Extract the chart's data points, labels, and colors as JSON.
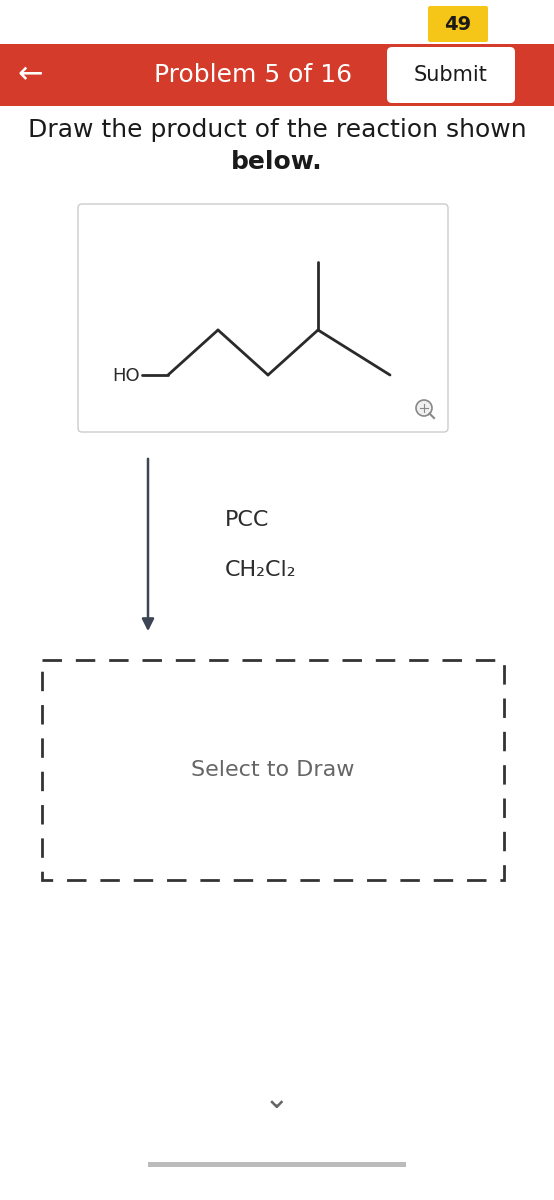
{
  "bg_color": "#ffffff",
  "header_color": "#d43b2a",
  "header_text": "Problem 5 of 16",
  "header_text_color": "#ffffff",
  "submit_btn_text": "Submit",
  "submit_btn_color": "#ffffff",
  "submit_btn_text_color": "#1a1a1a",
  "back_arrow": "←",
  "badge_text": "49",
  "badge_color": "#f5c518",
  "badge_text_color": "#1a1a1a",
  "instruction_line1": "Draw the product of the reaction shown",
  "instruction_line2": "below.",
  "instruction_color": "#1a1a1a",
  "reagent_line1": "PCC",
  "reagent_line2": "CH₂Cl₂",
  "reagent_color": "#2d2d2d",
  "select_draw_text": "Select to Draw",
  "select_draw_color": "#666666",
  "molecule_box_bg": "#ffffff",
  "molecule_box_border": "#cccccc",
  "dashed_box_border": "#333333",
  "arrow_color": "#3d4555",
  "mol_line_color": "#2a2a2a",
  "bottom_bar_color": "#bbbbbb",
  "chevron_color": "#666666",
  "magnifier_color": "#888888"
}
